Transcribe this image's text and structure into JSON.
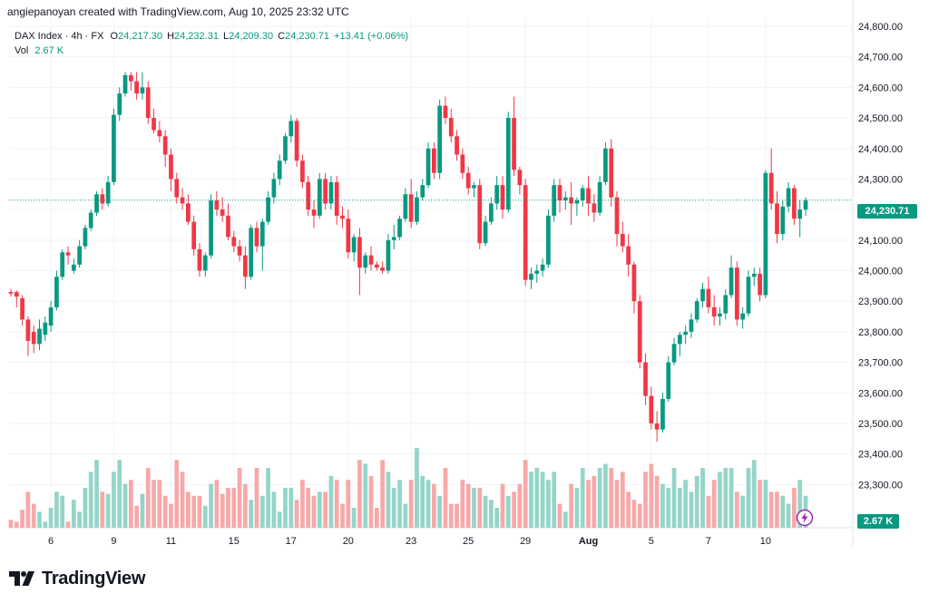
{
  "header": {
    "created_by": "angiepanoyan created with TradingView.com, Aug 10, 2025 23:32 UTC"
  },
  "ohlc": {
    "symbol": "DAX Index · 4h · FX",
    "o_label": "O",
    "o_value": "24,217.30",
    "h_label": "H",
    "h_value": "24,232.31",
    "l_label": "L",
    "l_value": "24,209.30",
    "c_label": "C",
    "c_value": "24,230.71",
    "change": "+13.41 (+0.06%)"
  },
  "volume": {
    "label": "Vol",
    "value": "2.67 K"
  },
  "price_tag": "24,230.71",
  "volume_tag": "2.67 K",
  "footer": {
    "logo_text": "TradingView"
  },
  "colors": {
    "up": "#089981",
    "down": "#f23645",
    "up_vol": "#94d5c8",
    "down_vol": "#f7a8a8",
    "grid": "#f0f3fa",
    "axis_text": "#131722"
  },
  "icons": {
    "logo": "tradingview-logo-icon",
    "alert": "lightning-alert-icon"
  },
  "chart_data": {
    "type": "candlestick",
    "ylim": [
      23200,
      24800
    ],
    "y_ticks": [
      "24,800.00",
      "24,700.00",
      "24,600.00",
      "24,500.00",
      "24,400.00",
      "24,300.00",
      "24,200.00",
      "24,100.00",
      "24,000.00",
      "23,900.00",
      "23,800.00",
      "23,700.00",
      "23,600.00",
      "23,500.00",
      "23,400.00",
      "23,300.00"
    ],
    "y_tick_values": [
      24800,
      24700,
      24600,
      24500,
      24400,
      24300,
      24200,
      24100,
      24000,
      23900,
      23800,
      23700,
      23600,
      23500,
      23400,
      23300
    ],
    "x_ticks": [
      "6",
      "9",
      "11",
      "15",
      "17",
      "20",
      "23",
      "25",
      "29",
      "Aug",
      "5",
      "7",
      "10"
    ],
    "x_tick_index": [
      7,
      18,
      28,
      39,
      49,
      59,
      70,
      80,
      90,
      101,
      112,
      122,
      132
    ],
    "last_price": 24230.71,
    "candles": [
      [
        23930,
        23940,
        23915,
        23925
      ],
      [
        23930,
        23935,
        23880,
        23915
      ],
      [
        23910,
        23920,
        23820,
        23840
      ],
      [
        23840,
        23850,
        23720,
        23770
      ],
      [
        23800,
        23820,
        23730,
        23760
      ],
      [
        23760,
        23840,
        23740,
        23810
      ],
      [
        23790,
        23850,
        23770,
        23830
      ],
      [
        23820,
        23900,
        23800,
        23880
      ],
      [
        23880,
        24000,
        23870,
        23980
      ],
      [
        23980,
        24070,
        23970,
        24060
      ],
      [
        24060,
        24080,
        24020,
        24050
      ],
      [
        24000,
        24040,
        23990,
        24020
      ],
      [
        24020,
        24100,
        24010,
        24080
      ],
      [
        24080,
        24150,
        24070,
        24140
      ],
      [
        24140,
        24200,
        24130,
        24190
      ],
      [
        24190,
        24260,
        24180,
        24250
      ],
      [
        24250,
        24270,
        24200,
        24220
      ],
      [
        24220,
        24310,
        24210,
        24290
      ],
      [
        24290,
        24530,
        24280,
        24510
      ],
      [
        24510,
        24600,
        24490,
        24580
      ],
      [
        24580,
        24650,
        24570,
        24640
      ],
      [
        24640,
        24650,
        24590,
        24620
      ],
      [
        24620,
        24650,
        24560,
        24580
      ],
      [
        24580,
        24650,
        24560,
        24600
      ],
      [
        24600,
        24620,
        24480,
        24500
      ],
      [
        24500,
        24530,
        24450,
        24460
      ],
      [
        24460,
        24490,
        24420,
        24440
      ],
      [
        24440,
        24460,
        24340,
        24380
      ],
      [
        24380,
        24400,
        24260,
        24300
      ],
      [
        24300,
        24320,
        24220,
        24240
      ],
      [
        24240,
        24270,
        24200,
        24220
      ],
      [
        24220,
        24250,
        24150,
        24160
      ],
      [
        24160,
        24180,
        24050,
        24070
      ],
      [
        24070,
        24090,
        23980,
        24000
      ],
      [
        24000,
        24060,
        23980,
        24050
      ],
      [
        24050,
        24250,
        24040,
        24230
      ],
      [
        24230,
        24260,
        24180,
        24200
      ],
      [
        24200,
        24240,
        24160,
        24180
      ],
      [
        24180,
        24220,
        24100,
        24110
      ],
      [
        24110,
        24130,
        24060,
        24080
      ],
      [
        24080,
        24100,
        24030,
        24050
      ],
      [
        24050,
        24080,
        23940,
        23980
      ],
      [
        23980,
        24150,
        23970,
        24140
      ],
      [
        24140,
        24160,
        24060,
        24080
      ],
      [
        24080,
        24170,
        24000,
        24160
      ],
      [
        24160,
        24260,
        24150,
        24240
      ],
      [
        24240,
        24320,
        24220,
        24300
      ],
      [
        24300,
        24380,
        24280,
        24360
      ],
      [
        24360,
        24450,
        24350,
        24440
      ],
      [
        24440,
        24510,
        24420,
        24490
      ],
      [
        24490,
        24500,
        24340,
        24360
      ],
      [
        24360,
        24380,
        24270,
        24290
      ],
      [
        24290,
        24310,
        24180,
        24200
      ],
      [
        24200,
        24230,
        24140,
        24180
      ],
      [
        24180,
        24320,
        24170,
        24300
      ],
      [
        24300,
        24320,
        24200,
        24220
      ],
      [
        24220,
        24310,
        24200,
        24290
      ],
      [
        24290,
        24310,
        24150,
        24180
      ],
      [
        24180,
        24210,
        24140,
        24170
      ],
      [
        24170,
        24200,
        24040,
        24060
      ],
      [
        24060,
        24120,
        24030,
        24110
      ],
      [
        24110,
        24140,
        23920,
        24010
      ],
      [
        24010,
        24060,
        23990,
        24050
      ],
      [
        24050,
        24080,
        24000,
        24020
      ],
      [
        24020,
        24030,
        24000,
        24010
      ],
      [
        24010,
        24030,
        23990,
        24000
      ],
      [
        24000,
        24120,
        23990,
        24100
      ],
      [
        24100,
        24150,
        24070,
        24110
      ],
      [
        24110,
        24180,
        24100,
        24170
      ],
      [
        24170,
        24270,
        24160,
        24250
      ],
      [
        24250,
        24300,
        24140,
        24160
      ],
      [
        24160,
        24260,
        24150,
        24240
      ],
      [
        24240,
        24300,
        24230,
        24280
      ],
      [
        24280,
        24420,
        24270,
        24400
      ],
      [
        24400,
        24420,
        24300,
        24320
      ],
      [
        24320,
        24560,
        24300,
        24540
      ],
      [
        24540,
        24570,
        24480,
        24500
      ],
      [
        24500,
        24530,
        24420,
        24440
      ],
      [
        24440,
        24460,
        24360,
        24380
      ],
      [
        24380,
        24400,
        24300,
        24320
      ],
      [
        24320,
        24340,
        24250,
        24270
      ],
      [
        24270,
        24290,
        24240,
        24280
      ],
      [
        24280,
        24300,
        24070,
        24090
      ],
      [
        24090,
        24180,
        24080,
        24160
      ],
      [
        24160,
        24240,
        24150,
        24220
      ],
      [
        24220,
        24310,
        24200,
        24280
      ],
      [
        24280,
        24310,
        24170,
        24200
      ],
      [
        24200,
        24520,
        24190,
        24500
      ],
      [
        24500,
        24570,
        24310,
        24330
      ],
      [
        24330,
        24340,
        24250,
        24280
      ],
      [
        24280,
        24300,
        23950,
        23970
      ],
      [
        23970,
        24010,
        23940,
        23990
      ],
      [
        23990,
        24020,
        23960,
        24000
      ],
      [
        24000,
        24040,
        23980,
        24020
      ],
      [
        24020,
        24200,
        24010,
        24180
      ],
      [
        24180,
        24300,
        24160,
        24280
      ],
      [
        24280,
        24300,
        24190,
        24230
      ],
      [
        24230,
        24260,
        24200,
        24240
      ],
      [
        24240,
        24290,
        24150,
        24220
      ],
      [
        24220,
        24240,
        24180,
        24230
      ],
      [
        24230,
        24280,
        24210,
        24270
      ],
      [
        24270,
        24310,
        24180,
        24220
      ],
      [
        24220,
        24250,
        24160,
        24190
      ],
      [
        24190,
        24310,
        24180,
        24290
      ],
      [
        24290,
        24420,
        24280,
        24400
      ],
      [
        24400,
        24430,
        24210,
        24240
      ],
      [
        24240,
        24260,
        24080,
        24120
      ],
      [
        24120,
        24160,
        24060,
        24080
      ],
      [
        24080,
        24120,
        23980,
        24020
      ],
      [
        24020,
        24030,
        23860,
        23900
      ],
      [
        23900,
        23920,
        23680,
        23700
      ],
      [
        23700,
        23730,
        23560,
        23590
      ],
      [
        23590,
        23620,
        23480,
        23500
      ],
      [
        23500,
        23540,
        23440,
        23480
      ],
      [
        23480,
        23600,
        23470,
        23580
      ],
      [
        23580,
        23720,
        23570,
        23700
      ],
      [
        23700,
        23780,
        23690,
        23760
      ],
      [
        23760,
        23800,
        23720,
        23790
      ],
      [
        23790,
        23820,
        23760,
        23800
      ],
      [
        23800,
        23860,
        23780,
        23840
      ],
      [
        23840,
        23910,
        23830,
        23900
      ],
      [
        23900,
        23960,
        23880,
        23940
      ],
      [
        23940,
        23980,
        23860,
        23880
      ],
      [
        23880,
        23920,
        23820,
        23850
      ],
      [
        23850,
        23880,
        23820,
        23860
      ],
      [
        23860,
        23940,
        23840,
        23920
      ],
      [
        23920,
        24050,
        23910,
        24010
      ],
      [
        24010,
        24030,
        23820,
        23840
      ],
      [
        23840,
        23880,
        23810,
        23860
      ],
      [
        23860,
        24000,
        23850,
        23980
      ],
      [
        23980,
        24010,
        23950,
        23990
      ],
      [
        23990,
        24010,
        23900,
        23920
      ],
      [
        23920,
        24330,
        23910,
        24320
      ],
      [
        24320,
        24400,
        24200,
        24220
      ],
      [
        24220,
        24260,
        24090,
        24120
      ],
      [
        24120,
        24230,
        24100,
        24210
      ],
      [
        24210,
        24290,
        24190,
        24270
      ],
      [
        24270,
        24280,
        24150,
        24170
      ],
      [
        24170,
        24230,
        24110,
        24200
      ],
      [
        24200,
        24240,
        24180,
        24230
      ]
    ],
    "volumes": [
      4,
      3,
      9,
      18,
      12,
      8,
      3,
      10,
      18,
      16,
      3,
      14,
      8,
      20,
      28,
      34,
      18,
      17,
      28,
      34,
      22,
      24,
      11,
      17,
      30,
      24,
      24,
      16,
      12,
      34,
      28,
      18,
      16,
      16,
      11,
      22,
      24,
      17,
      20,
      20,
      30,
      22,
      14,
      30,
      16,
      30,
      18,
      8,
      20,
      20,
      14,
      24,
      20,
      16,
      18,
      18,
      26,
      24,
      12,
      24,
      10,
      34,
      32,
      26,
      10,
      34,
      28,
      20,
      24,
      12,
      24,
      40,
      26,
      24,
      22,
      16,
      30,
      12,
      12,
      24,
      22,
      20,
      20,
      16,
      14,
      10,
      22,
      16,
      18,
      22,
      34,
      28,
      30,
      28,
      24,
      28,
      12,
      8,
      22,
      20,
      30,
      24,
      26,
      30,
      32,
      30,
      24,
      28,
      18,
      14,
      12,
      28,
      32,
      26,
      22,
      20,
      30,
      20,
      24,
      18,
      26,
      30,
      16,
      24,
      28,
      30,
      30,
      18,
      16,
      30,
      34,
      24,
      24,
      18,
      18,
      16,
      12,
      20,
      24,
      16
    ]
  }
}
